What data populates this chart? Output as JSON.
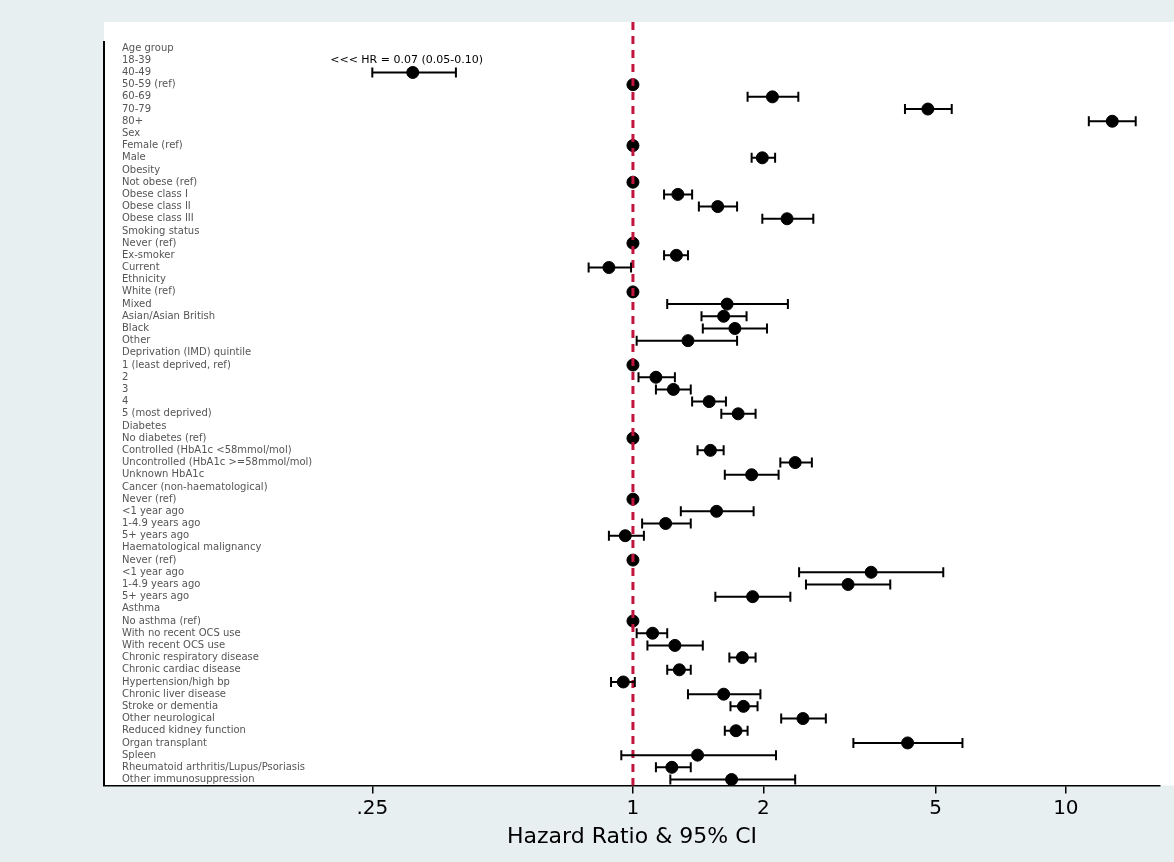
{
  "chart_data": {
    "type": "scatter",
    "orientation": "horizontal",
    "xlabel": "Hazard Ratio & 95% CI",
    "categories": [
      "Age group",
      "18-39",
      "40-49",
      "50-59 (ref)",
      "60-69",
      "70-79",
      "80+",
      "Sex",
      "Female (ref)",
      "Male",
      "Obesity",
      "Not obese (ref)",
      "Obese class I",
      "Obese class II",
      "Obese class III",
      "Smoking status",
      "Never (ref)",
      "Ex-smoker",
      "Current",
      "Ethnicity",
      "White (ref)",
      "Mixed",
      "Asian/Asian British",
      "Black",
      "Other",
      "Deprivation (IMD) quintile",
      "1 (least deprived, ref)",
      "2",
      "3",
      "4",
      "5 (most deprived)",
      "Diabetes",
      "No diabetes (ref)",
      "Controlled (HbA1c <58mmol/mol)",
      "Uncontrolled (HbA1c >=58mmol/mol)",
      "Unknown HbA1c",
      "Cancer (non-haematological)",
      "Never (ref)",
      "<1 year ago",
      "1-4.9 years ago",
      "5+ years ago",
      "Haematological malignancy",
      "Never (ref)",
      "<1 year ago",
      "1-4.9 years ago",
      "5+ years ago",
      "Asthma",
      "No asthma (ref)",
      "With no recent OCS use",
      "With recent OCS use",
      "Chronic respiratory disease",
      "Chronic cardiac disease",
      "Hypertension/high bp",
      "Chronic liver disease",
      "Stroke or dementia",
      "Other neurological",
      "Reduced kidney function",
      "Organ transplant",
      "Spleen",
      "Rheumatoid arthritis/Lupus/Psoriasis",
      "Other immunosuppression"
    ],
    "values": [
      null,
      null,
      0.31,
      1,
      2.1,
      4.8,
      12.8,
      null,
      1,
      1.99,
      null,
      1,
      1.27,
      1.57,
      2.27,
      null,
      1,
      1.26,
      0.88,
      null,
      1,
      1.65,
      1.62,
      1.72,
      1.34,
      null,
      1,
      1.13,
      1.24,
      1.5,
      1.75,
      null,
      1,
      1.51,
      2.37,
      1.88,
      null,
      1,
      1.56,
      1.19,
      0.96,
      null,
      1,
      3.55,
      3.14,
      1.89,
      null,
      1,
      1.11,
      1.25,
      1.79,
      1.28,
      0.95,
      1.62,
      1.8,
      2.47,
      1.73,
      4.31,
      1.41,
      1.23,
      1.69
    ],
    "errors": [
      null,
      null,
      [
        0.25,
        0.39
      ],
      null,
      [
        1.84,
        2.41
      ],
      [
        4.25,
        5.45
      ],
      [
        11.3,
        14.5
      ],
      null,
      null,
      [
        1.88,
        2.13
      ],
      null,
      null,
      [
        1.18,
        1.37
      ],
      [
        1.42,
        1.74
      ],
      [
        1.99,
        2.61
      ],
      null,
      null,
      [
        1.18,
        1.34
      ],
      [
        0.79,
        0.99
      ],
      null,
      null,
      [
        1.2,
        2.28
      ],
      [
        1.44,
        1.83
      ],
      [
        1.45,
        2.04
      ],
      [
        1.02,
        1.74
      ],
      null,
      null,
      [
        1.03,
        1.25
      ],
      [
        1.13,
        1.36
      ],
      [
        1.37,
        1.64
      ],
      [
        1.6,
        1.92
      ],
      null,
      null,
      [
        1.41,
        1.62
      ],
      [
        2.19,
        2.59
      ],
      [
        1.63,
        2.17
      ],
      null,
      null,
      [
        1.29,
        1.9
      ],
      [
        1.05,
        1.36
      ],
      [
        0.88,
        1.06
      ],
      null,
      null,
      [
        2.42,
        5.21
      ],
      [
        2.51,
        3.93
      ],
      [
        1.55,
        2.31
      ],
      null,
      null,
      [
        1.02,
        1.2
      ],
      [
        1.08,
        1.45
      ],
      [
        1.67,
        1.92
      ],
      [
        1.2,
        1.36
      ],
      [
        0.89,
        1.01
      ],
      [
        1.34,
        1.97
      ],
      [
        1.68,
        1.94
      ],
      [
        2.2,
        2.79
      ],
      [
        1.63,
        1.84
      ],
      [
        3.23,
        5.77
      ],
      [
        0.94,
        2.14
      ],
      [
        1.13,
        1.36
      ],
      [
        1.22,
        2.37
      ]
    ],
    "color": "#000000",
    "marker": "circle",
    "log": "x",
    "grid": false,
    "legend": false,
    "xlim": [
      0.06,
      16.5
    ],
    "xticks": [
      {
        "value": 0.25,
        "label": ".25"
      },
      1,
      2,
      5,
      10
    ],
    "ref_lines": [
      {
        "axis": "x",
        "value": 1,
        "color": "#c0143c",
        "line_style": "dashed"
      }
    ],
    "annotations": [
      {
        "text": "<<< HR = 0.07 (0.05-0.10)",
        "x": 0.3,
        "y": "18-39"
      }
    ]
  }
}
